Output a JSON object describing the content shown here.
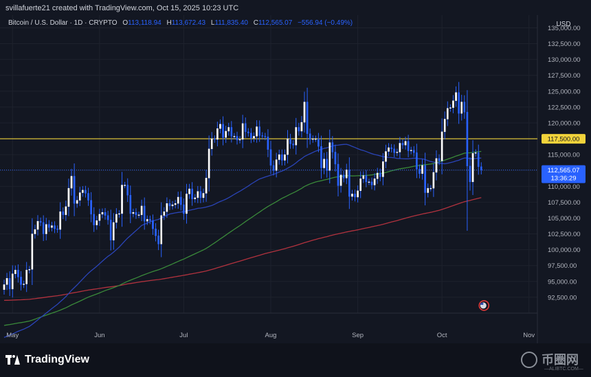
{
  "credit": "svillafuerte21 created with TradingView.com, Oct 15, 2025 10:23 UTC",
  "legend": {
    "title": "Bitcoin / U.S. Dollar · 1D · CRYPTO",
    "o_label": "O",
    "o_value": "113,118.94",
    "h_label": "H",
    "h_value": "113,672.43",
    "l_label": "L",
    "l_value": "111,835.40",
    "c_label": "C",
    "c_value": "112,565.07",
    "change": "−556.94 (−0.49%)"
  },
  "currency": "USD",
  "footer": {
    "logo_text": "TradingView",
    "watermark_text": "币圈网",
    "watermark_sub": "—ALIBTC.COM—"
  },
  "colors": {
    "background": "#131722",
    "grid": "#1e222d",
    "candle": "#ffffff",
    "candle_wick": "#2962ff",
    "ma_short": "#2a44b8",
    "ma_mid": "#3a8a3a",
    "ma_long": "#b2323e",
    "level_line": "#f2d33b",
    "price_line": "#2962ff"
  },
  "chart_data": {
    "type": "candlestick",
    "title": "Bitcoin / U.S. Dollar · 1D · CRYPTO",
    "xlabel": "",
    "ylabel": "USD",
    "ylim": [
      90000,
      137000
    ],
    "y_ticks": [
      "135,000.00",
      "132,500.00",
      "130,000.00",
      "127,500.00",
      "125,000.00",
      "122,500.00",
      "120,000.00",
      "117,500.00",
      "115,000.00",
      "112,500.00",
      "110,000.00",
      "107,500.00",
      "105,000.00",
      "102,500.00",
      "100,000.00",
      "97,500.00",
      "95,000.00",
      "92,500.00"
    ],
    "y_tick_values": [
      135000,
      132500,
      130000,
      127500,
      125000,
      122500,
      120000,
      117500,
      115000,
      112500,
      110000,
      107500,
      105000,
      102500,
      100000,
      97500,
      95000,
      92500
    ],
    "x_ticks": [
      "May",
      "Jun",
      "Jul",
      "Aug",
      "Sep",
      "Oct",
      "Nov"
    ],
    "x_range": [
      "2025-04-28",
      "2025-11-04"
    ],
    "x_tick_dates": [
      "2025-05-01",
      "2025-06-01",
      "2025-07-01",
      "2025-08-01",
      "2025-09-01",
      "2025-10-01",
      "2025-11-01"
    ],
    "grid": true,
    "horizontal_level": {
      "value": 117500,
      "label": "117,500.00"
    },
    "last_price": {
      "value": 112565.07,
      "label": "112,565.07",
      "countdown": "13:36:29"
    },
    "candles": [
      {
        "date": "2025-04-28",
        "close": 94500
      },
      {
        "date": "2025-04-29",
        "close": 95500
      },
      {
        "date": "2025-04-30",
        "close": 93800
      },
      {
        "date": "2025-05-01",
        "close": 96200
      },
      {
        "date": "2025-05-02",
        "close": 96800
      },
      {
        "date": "2025-05-03",
        "close": 95700
      },
      {
        "date": "2025-05-04",
        "close": 94500
      },
      {
        "date": "2025-05-05",
        "close": 94600
      },
      {
        "date": "2025-05-06",
        "close": 96800
      },
      {
        "date": "2025-05-07",
        "close": 96900
      },
      {
        "date": "2025-05-08",
        "close": 102500
      },
      {
        "date": "2025-05-09",
        "close": 103200
      },
      {
        "date": "2025-05-10",
        "close": 104500
      },
      {
        "date": "2025-05-11",
        "close": 104300
      },
      {
        "date": "2025-05-12",
        "close": 102500
      },
      {
        "date": "2025-05-13",
        "close": 104000
      },
      {
        "date": "2025-05-14",
        "close": 103500
      },
      {
        "date": "2025-05-15",
        "close": 103800
      },
      {
        "date": "2025-05-16",
        "close": 103300
      },
      {
        "date": "2025-05-17",
        "close": 103200
      },
      {
        "date": "2025-05-18",
        "close": 106000
      },
      {
        "date": "2025-05-19",
        "close": 105500
      },
      {
        "date": "2025-05-20",
        "close": 106800
      },
      {
        "date": "2025-05-21",
        "close": 109700
      },
      {
        "date": "2025-05-22",
        "close": 111600
      },
      {
        "date": "2025-05-23",
        "close": 107300
      },
      {
        "date": "2025-05-24",
        "close": 107800
      },
      {
        "date": "2025-05-25",
        "close": 109000
      },
      {
        "date": "2025-05-26",
        "close": 109400
      },
      {
        "date": "2025-05-27",
        "close": 108900
      },
      {
        "date": "2025-05-28",
        "close": 107800
      },
      {
        "date": "2025-05-29",
        "close": 105600
      },
      {
        "date": "2025-05-30",
        "close": 103900
      },
      {
        "date": "2025-05-31",
        "close": 104600
      },
      {
        "date": "2025-06-01",
        "close": 105600
      },
      {
        "date": "2025-06-02",
        "close": 105900
      },
      {
        "date": "2025-06-03",
        "close": 105400
      },
      {
        "date": "2025-06-04",
        "close": 104700
      },
      {
        "date": "2025-06-05",
        "close": 101500
      },
      {
        "date": "2025-06-06",
        "close": 104300
      },
      {
        "date": "2025-06-07",
        "close": 105600
      },
      {
        "date": "2025-06-08",
        "close": 105700
      },
      {
        "date": "2025-06-09",
        "close": 110200
      },
      {
        "date": "2025-06-10",
        "close": 110200
      },
      {
        "date": "2025-06-11",
        "close": 108600
      },
      {
        "date": "2025-06-12",
        "close": 105700
      },
      {
        "date": "2025-06-13",
        "close": 105900
      },
      {
        "date": "2025-06-14",
        "close": 105500
      },
      {
        "date": "2025-06-15",
        "close": 105500
      },
      {
        "date": "2025-06-16",
        "close": 106900
      },
      {
        "date": "2025-06-17",
        "close": 104500
      },
      {
        "date": "2025-06-18",
        "close": 104800
      },
      {
        "date": "2025-06-19",
        "close": 104600
      },
      {
        "date": "2025-06-20",
        "close": 103300
      },
      {
        "date": "2025-06-21",
        "close": 102200
      },
      {
        "date": "2025-06-22",
        "close": 100900
      },
      {
        "date": "2025-06-23",
        "close": 105400
      },
      {
        "date": "2025-06-24",
        "close": 106000
      },
      {
        "date": "2025-06-25",
        "close": 107300
      },
      {
        "date": "2025-06-26",
        "close": 106900
      },
      {
        "date": "2025-06-27",
        "close": 107100
      },
      {
        "date": "2025-06-28",
        "close": 107300
      },
      {
        "date": "2025-06-29",
        "close": 108300
      },
      {
        "date": "2025-06-30",
        "close": 107100
      },
      {
        "date": "2025-07-01",
        "close": 105700
      },
      {
        "date": "2025-07-02",
        "close": 108800
      },
      {
        "date": "2025-07-03",
        "close": 109600
      },
      {
        "date": "2025-07-04",
        "close": 108000
      },
      {
        "date": "2025-07-05",
        "close": 108200
      },
      {
        "date": "2025-07-06",
        "close": 109200
      },
      {
        "date": "2025-07-07",
        "close": 108200
      },
      {
        "date": "2025-07-08",
        "close": 108900
      },
      {
        "date": "2025-07-09",
        "close": 111300
      },
      {
        "date": "2025-07-10",
        "close": 115900
      },
      {
        "date": "2025-07-11",
        "close": 117500
      },
      {
        "date": "2025-07-12",
        "close": 117400
      },
      {
        "date": "2025-07-13",
        "close": 119100
      },
      {
        "date": "2025-07-14",
        "close": 119800
      },
      {
        "date": "2025-07-15",
        "close": 117700
      },
      {
        "date": "2025-07-16",
        "close": 118700
      },
      {
        "date": "2025-07-17",
        "close": 119300
      },
      {
        "date": "2025-07-18",
        "close": 117900
      },
      {
        "date": "2025-07-19",
        "close": 117900
      },
      {
        "date": "2025-07-20",
        "close": 117300
      },
      {
        "date": "2025-07-21",
        "close": 117400
      },
      {
        "date": "2025-07-22",
        "close": 119900
      },
      {
        "date": "2025-07-23",
        "close": 118600
      },
      {
        "date": "2025-07-24",
        "close": 118400
      },
      {
        "date": "2025-07-25",
        "close": 117600
      },
      {
        "date": "2025-07-26",
        "close": 117900
      },
      {
        "date": "2025-07-27",
        "close": 119400
      },
      {
        "date": "2025-07-28",
        "close": 118000
      },
      {
        "date": "2025-07-29",
        "close": 117900
      },
      {
        "date": "2025-07-30",
        "close": 117800
      },
      {
        "date": "2025-07-31",
        "close": 115800
      },
      {
        "date": "2025-08-01",
        "close": 113300
      },
      {
        "date": "2025-08-02",
        "close": 112500
      },
      {
        "date": "2025-08-03",
        "close": 114200
      },
      {
        "date": "2025-08-04",
        "close": 115000
      },
      {
        "date": "2025-08-05",
        "close": 114100
      },
      {
        "date": "2025-08-06",
        "close": 115000
      },
      {
        "date": "2025-08-07",
        "close": 117500
      },
      {
        "date": "2025-08-08",
        "close": 116700
      },
      {
        "date": "2025-08-09",
        "close": 116500
      },
      {
        "date": "2025-08-10",
        "close": 119300
      },
      {
        "date": "2025-08-11",
        "close": 118700
      },
      {
        "date": "2025-08-12",
        "close": 120100
      },
      {
        "date": "2025-08-13",
        "close": 123300
      },
      {
        "date": "2025-08-14",
        "close": 118300
      },
      {
        "date": "2025-08-15",
        "close": 117400
      },
      {
        "date": "2025-08-16",
        "close": 117500
      },
      {
        "date": "2025-08-17",
        "close": 117500
      },
      {
        "date": "2025-08-18",
        "close": 116300
      },
      {
        "date": "2025-08-19",
        "close": 112900
      },
      {
        "date": "2025-08-20",
        "close": 114300
      },
      {
        "date": "2025-08-21",
        "close": 112500
      },
      {
        "date": "2025-08-22",
        "close": 116900
      },
      {
        "date": "2025-08-23",
        "close": 115400
      },
      {
        "date": "2025-08-24",
        "close": 113500
      },
      {
        "date": "2025-08-25",
        "close": 110100
      },
      {
        "date": "2025-08-26",
        "close": 111800
      },
      {
        "date": "2025-08-27",
        "close": 111300
      },
      {
        "date": "2025-08-28",
        "close": 112600
      },
      {
        "date": "2025-08-29",
        "close": 108400
      },
      {
        "date": "2025-08-30",
        "close": 108800
      },
      {
        "date": "2025-08-31",
        "close": 108300
      },
      {
        "date": "2025-09-01",
        "close": 109300
      },
      {
        "date": "2025-09-02",
        "close": 111200
      },
      {
        "date": "2025-09-03",
        "close": 111700
      },
      {
        "date": "2025-09-04",
        "close": 110700
      },
      {
        "date": "2025-09-05",
        "close": 110700
      },
      {
        "date": "2025-09-06",
        "close": 110200
      },
      {
        "date": "2025-09-07",
        "close": 111200
      },
      {
        "date": "2025-09-08",
        "close": 112100
      },
      {
        "date": "2025-09-09",
        "close": 111500
      },
      {
        "date": "2025-09-10",
        "close": 113900
      },
      {
        "date": "2025-09-11",
        "close": 115500
      },
      {
        "date": "2025-09-12",
        "close": 116100
      },
      {
        "date": "2025-09-13",
        "close": 115900
      },
      {
        "date": "2025-09-14",
        "close": 115300
      },
      {
        "date": "2025-09-15",
        "close": 115400
      },
      {
        "date": "2025-09-16",
        "close": 116800
      },
      {
        "date": "2025-09-17",
        "close": 116500
      },
      {
        "date": "2025-09-18",
        "close": 117100
      },
      {
        "date": "2025-09-19",
        "close": 115600
      },
      {
        "date": "2025-09-20",
        "close": 115700
      },
      {
        "date": "2025-09-21",
        "close": 115300
      },
      {
        "date": "2025-09-22",
        "close": 112700
      },
      {
        "date": "2025-09-23",
        "close": 112000
      },
      {
        "date": "2025-09-24",
        "close": 113300
      },
      {
        "date": "2025-09-25",
        "close": 109000
      },
      {
        "date": "2025-09-26",
        "close": 109700
      },
      {
        "date": "2025-09-27",
        "close": 109700
      },
      {
        "date": "2025-09-28",
        "close": 112200
      },
      {
        "date": "2025-09-29",
        "close": 114400
      },
      {
        "date": "2025-09-30",
        "close": 114000
      },
      {
        "date": "2025-10-01",
        "close": 118600
      },
      {
        "date": "2025-10-02",
        "close": 120600
      },
      {
        "date": "2025-10-03",
        "close": 122300
      },
      {
        "date": "2025-10-04",
        "close": 122400
      },
      {
        "date": "2025-10-05",
        "close": 123500
      },
      {
        "date": "2025-10-06",
        "close": 124800
      },
      {
        "date": "2025-10-07",
        "close": 121500
      },
      {
        "date": "2025-10-08",
        "close": 123300
      },
      {
        "date": "2025-10-09",
        "close": 121700
      },
      {
        "date": "2025-10-10",
        "close": 113200
      },
      {
        "date": "2025-10-11",
        "close": 110700
      },
      {
        "date": "2025-10-12",
        "close": 115200
      },
      {
        "date": "2025-10-13",
        "close": 115300
      },
      {
        "date": "2025-10-14",
        "close": 113100
      },
      {
        "date": "2025-10-15",
        "close": 112565.07
      }
    ]
  }
}
